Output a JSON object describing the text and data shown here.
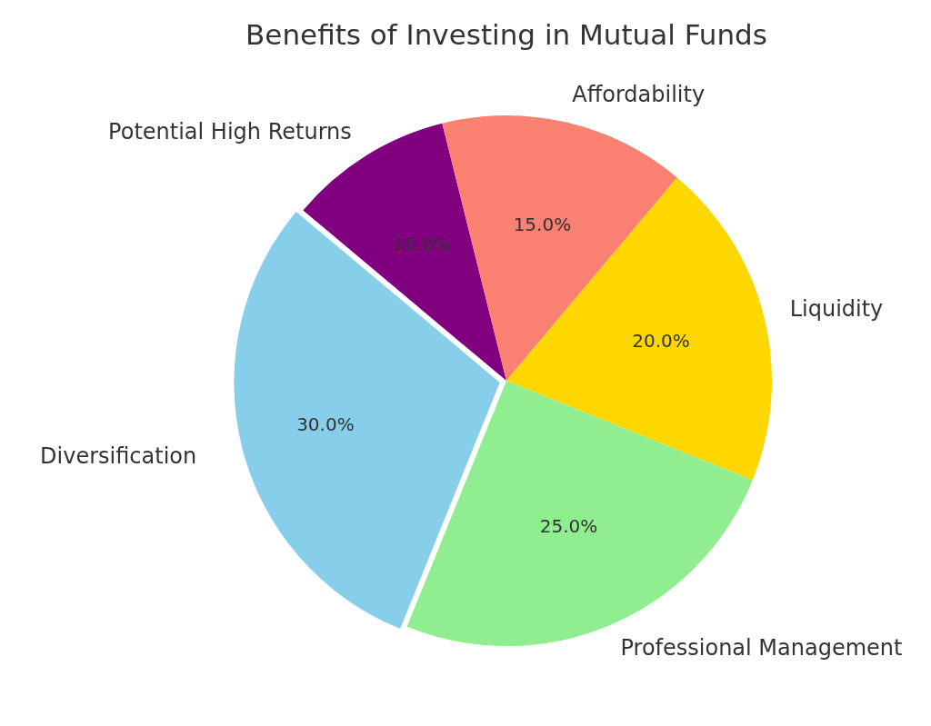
{
  "chart_data": {
    "type": "pie",
    "title": "Benefits of Investing in Mutual Funds",
    "categories": [
      "Diversification",
      "Potential High Returns",
      "Affordability",
      "Liquidity",
      "Professional Management"
    ],
    "values": [
      30,
      10,
      15,
      20,
      25
    ],
    "colors": [
      "#87ceeb",
      "#800080",
      "#fa8072",
      "#ffd700",
      "#90ee90"
    ],
    "value_labels": [
      "30.0%",
      "10.0%",
      "15.0%",
      "20.0%",
      "25.0%"
    ],
    "legend": false
  }
}
